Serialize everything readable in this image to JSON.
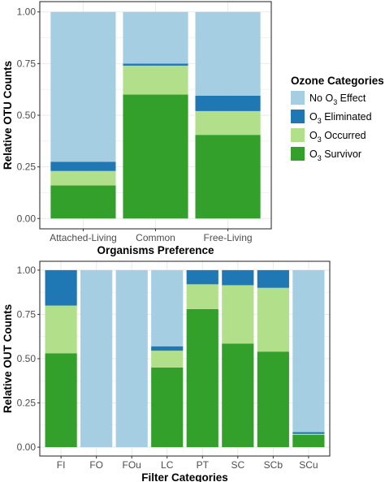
{
  "colors": {
    "no_effect": "#a6cee3",
    "eliminated": "#1f78b4",
    "occurred": "#b2df8a",
    "survivor": "#33a02c",
    "grid": "#ebebeb",
    "panel_border": "#333333"
  },
  "legend": {
    "title": "Ozone Categories",
    "items": [
      {
        "key": "no_effect",
        "prefix": "No O",
        "sub": "3",
        "suffix": " Effect"
      },
      {
        "key": "eliminated",
        "prefix": "O",
        "sub": "3",
        "suffix": " Eliminated"
      },
      {
        "key": "occurred",
        "prefix": "O",
        "sub": "3",
        "suffix": " Occurred"
      },
      {
        "key": "survivor",
        "prefix": "O",
        "sub": "3",
        "suffix": " Survivor"
      }
    ]
  },
  "chart_data": [
    {
      "type": "bar",
      "stacked": true,
      "xlabel": "Organisms Preference",
      "ylabel": "Relative OTU Counts",
      "ylim": [
        0,
        1
      ],
      "yticks": [
        "0.00",
        "0.25",
        "0.50",
        "0.75",
        "1.00"
      ],
      "categories": [
        "Attached-Living",
        "Common",
        "Free-Living"
      ],
      "series": [
        {
          "key": "survivor",
          "name": "O3 Survivor",
          "values": [
            0.16,
            0.6,
            0.405
          ]
        },
        {
          "key": "occurred",
          "name": "O3 Occurred",
          "values": [
            0.07,
            0.14,
            0.115
          ]
        },
        {
          "key": "eliminated",
          "name": "O3 Eliminated",
          "values": [
            0.045,
            0.01,
            0.075
          ]
        },
        {
          "key": "no_effect",
          "name": "No O3 Effect",
          "values": [
            0.725,
            0.25,
            0.405
          ]
        }
      ]
    },
    {
      "type": "bar",
      "stacked": true,
      "xlabel": "Filter Categories",
      "ylabel": "Relative OUT Counts",
      "ylim": [
        0,
        1
      ],
      "yticks": [
        "0.00",
        "0.25",
        "0.50",
        "0.75",
        "1.00"
      ],
      "categories": [
        "FI",
        "FO",
        "FOu",
        "LC",
        "PT",
        "SC",
        "SCb",
        "SCu"
      ],
      "series": [
        {
          "key": "survivor",
          "name": "O3 Survivor",
          "values": [
            0.53,
            0,
            0,
            0.45,
            0.78,
            0.585,
            0.54,
            0.07
          ]
        },
        {
          "key": "occurred",
          "name": "O3 Occurred",
          "values": [
            0.27,
            0,
            0,
            0.095,
            0.14,
            0.33,
            0.36,
            0.005
          ]
        },
        {
          "key": "eliminated",
          "name": "O3 Eliminated",
          "values": [
            0.2,
            0,
            0,
            0.025,
            0.08,
            0.085,
            0.1,
            0.01
          ]
        },
        {
          "key": "no_effect",
          "name": "No O3 Effect",
          "values": [
            0,
            1.0,
            1.0,
            0.43,
            0,
            0,
            0,
            0.915
          ]
        }
      ]
    }
  ]
}
